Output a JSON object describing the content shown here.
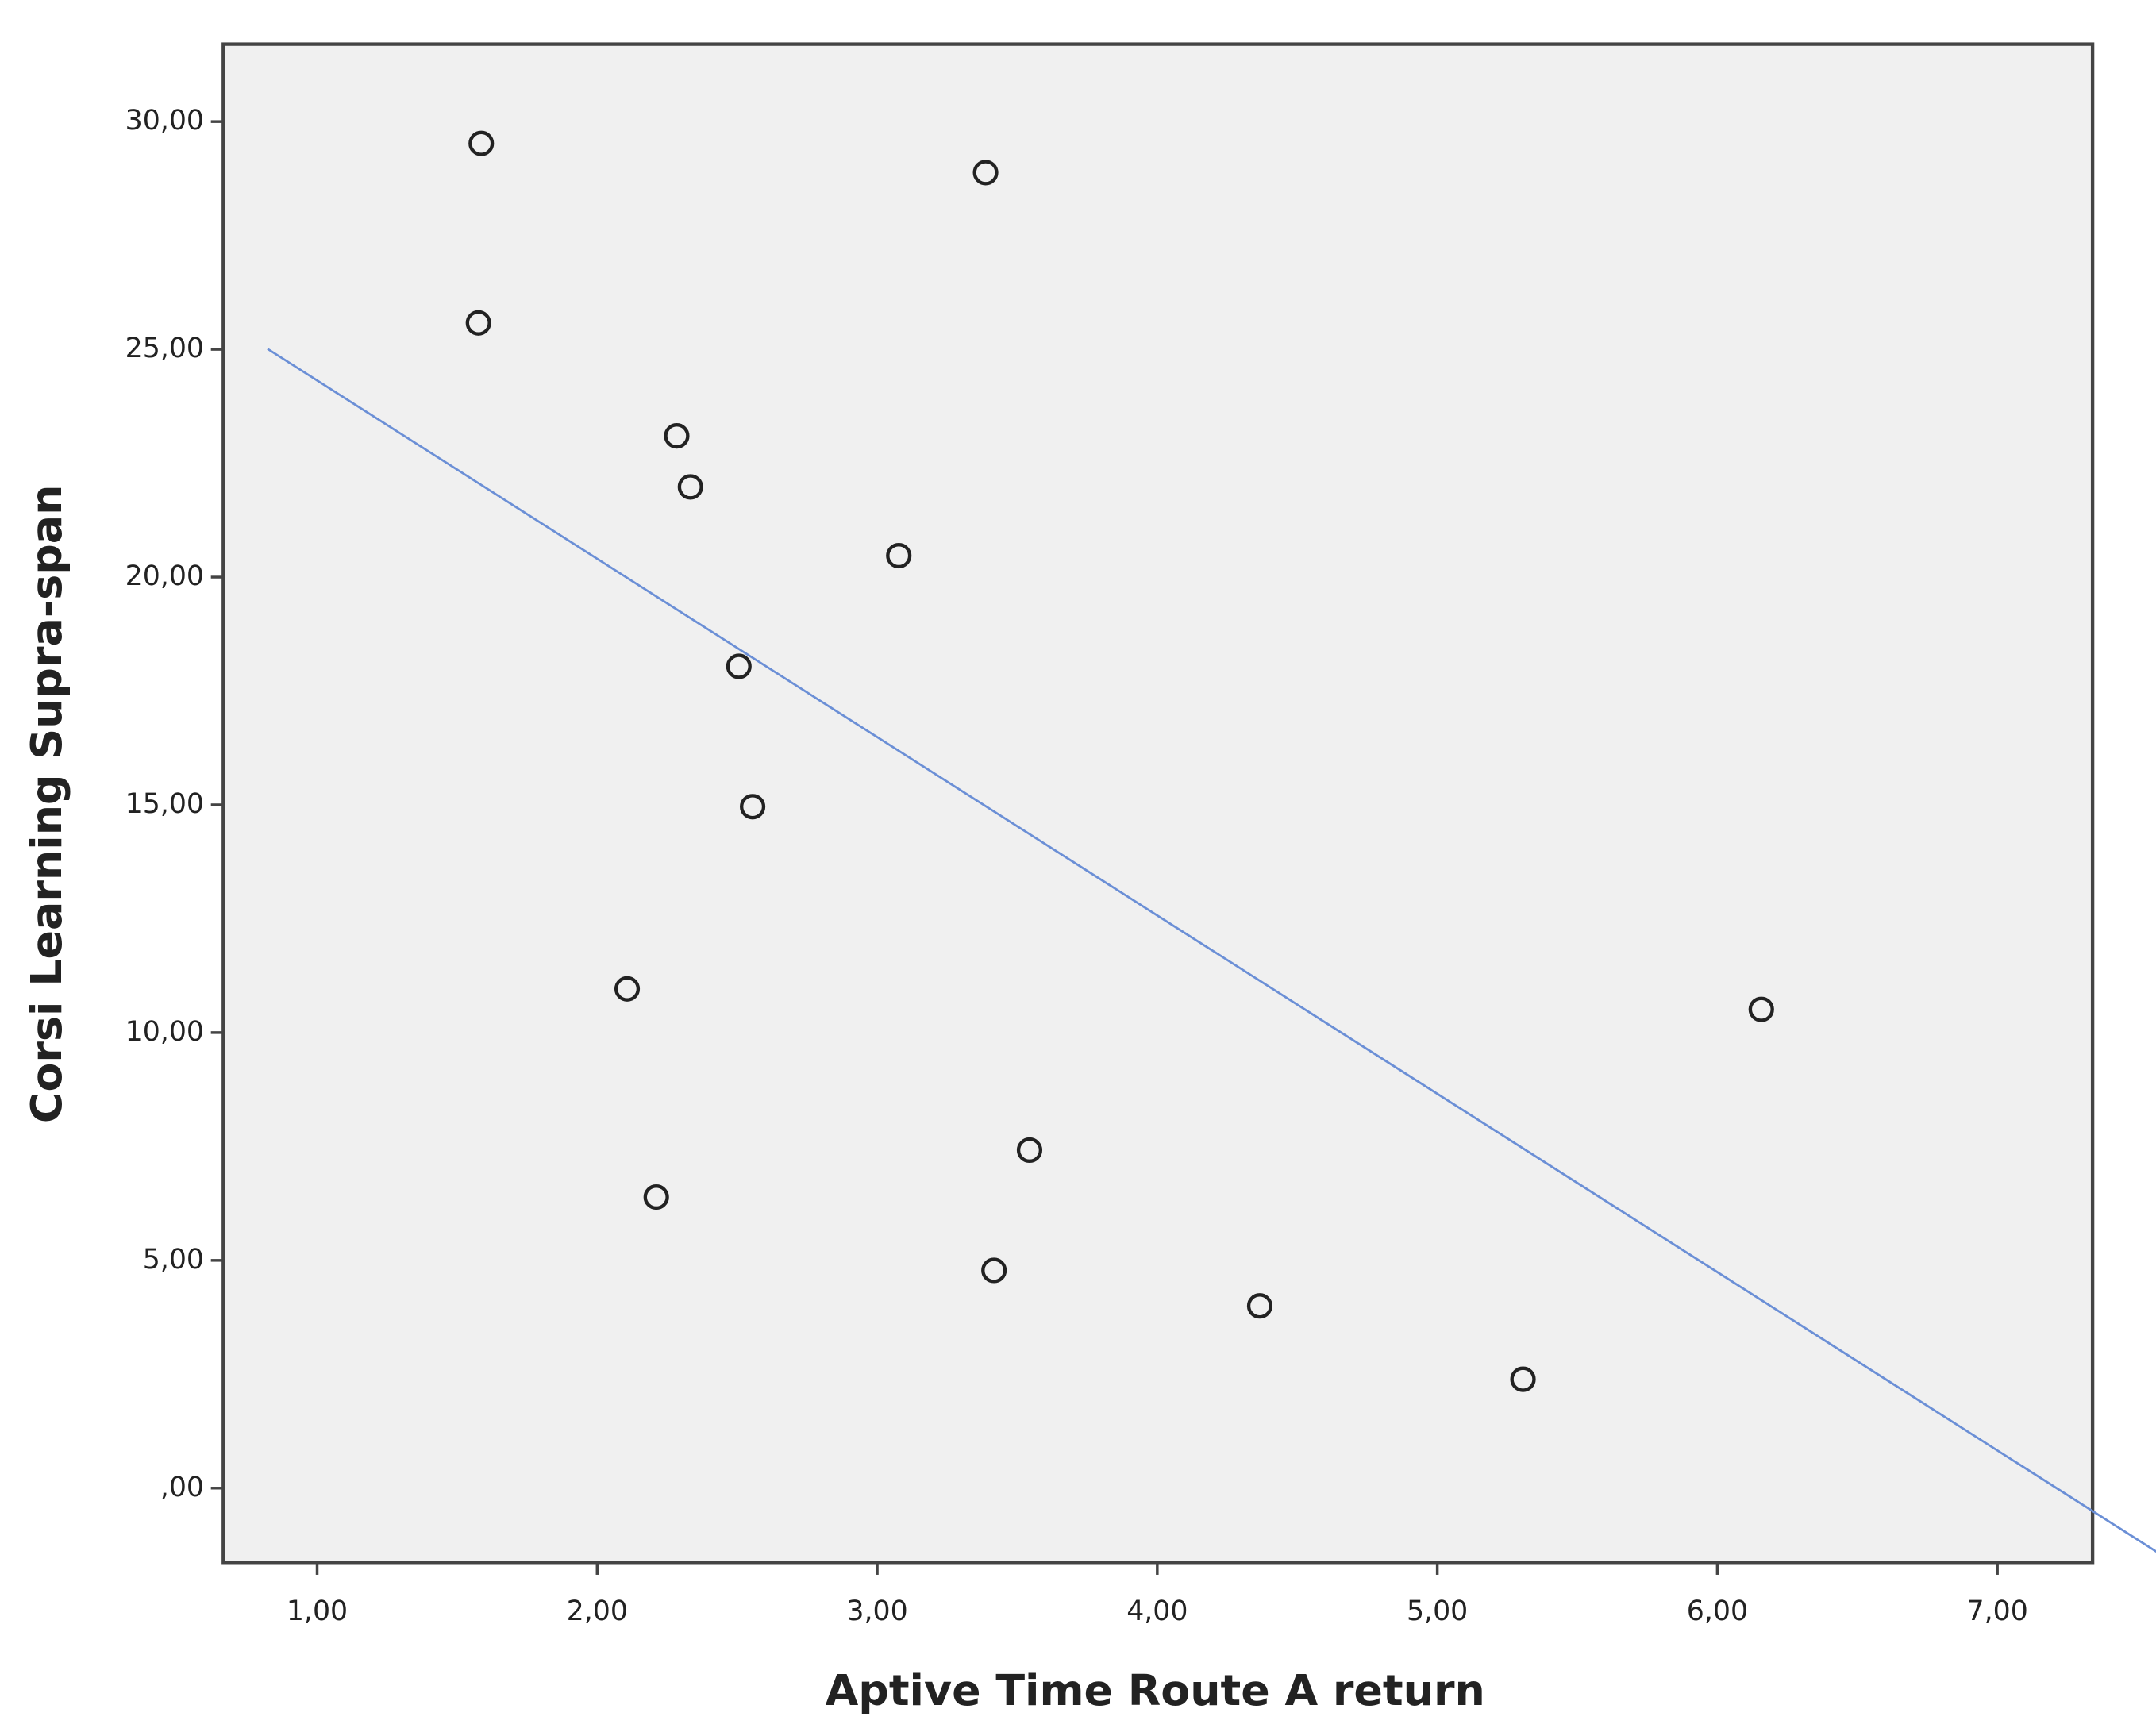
{
  "chart_data": {
    "type": "scatter",
    "x_label": "Aptive Time Route A return",
    "y_label": "Corsi Learning Supra-span",
    "x": [
      1.586,
      3.387,
      1.576,
      2.284,
      2.333,
      3.077,
      2.506,
      2.555,
      2.107,
      6.157,
      3.544,
      2.211,
      3.417,
      4.366,
      5.306
    ],
    "y": [
      29.52,
      28.88,
      25.58,
      23.1,
      21.98,
      20.47,
      18.04,
      14.96,
      10.96,
      10.51,
      7.42,
      6.39,
      4.78,
      4.0,
      2.39
    ],
    "color": "#222222",
    "fit_line": {
      "x": [
        0.823,
        7.638
      ],
      "y": [
        25.01,
        -1.67
      ],
      "color": "#6b8fd6"
    },
    "xlim": [
      0.665,
      7.34
    ],
    "ylim": [
      -1.63,
      31.7
    ],
    "xticks": [
      {
        "value": 1,
        "label": "1,00"
      },
      {
        "value": 2,
        "label": "2,00"
      },
      {
        "value": 3,
        "label": "3,00"
      },
      {
        "value": 4,
        "label": "4,00"
      },
      {
        "value": 5,
        "label": "5,00"
      },
      {
        "value": 6,
        "label": "6,00"
      },
      {
        "value": 7,
        "label": "7,00"
      }
    ],
    "yticks": [
      {
        "value": 0,
        "label": ",00"
      },
      {
        "value": 5,
        "label": "5,00"
      },
      {
        "value": 10,
        "label": "10,00"
      },
      {
        "value": 15,
        "label": "15,00"
      },
      {
        "value": 20,
        "label": "20,00"
      },
      {
        "value": 25,
        "label": "25,00"
      },
      {
        "value": 30,
        "label": "30,00"
      }
    ],
    "background": "#f0f0f0"
  }
}
